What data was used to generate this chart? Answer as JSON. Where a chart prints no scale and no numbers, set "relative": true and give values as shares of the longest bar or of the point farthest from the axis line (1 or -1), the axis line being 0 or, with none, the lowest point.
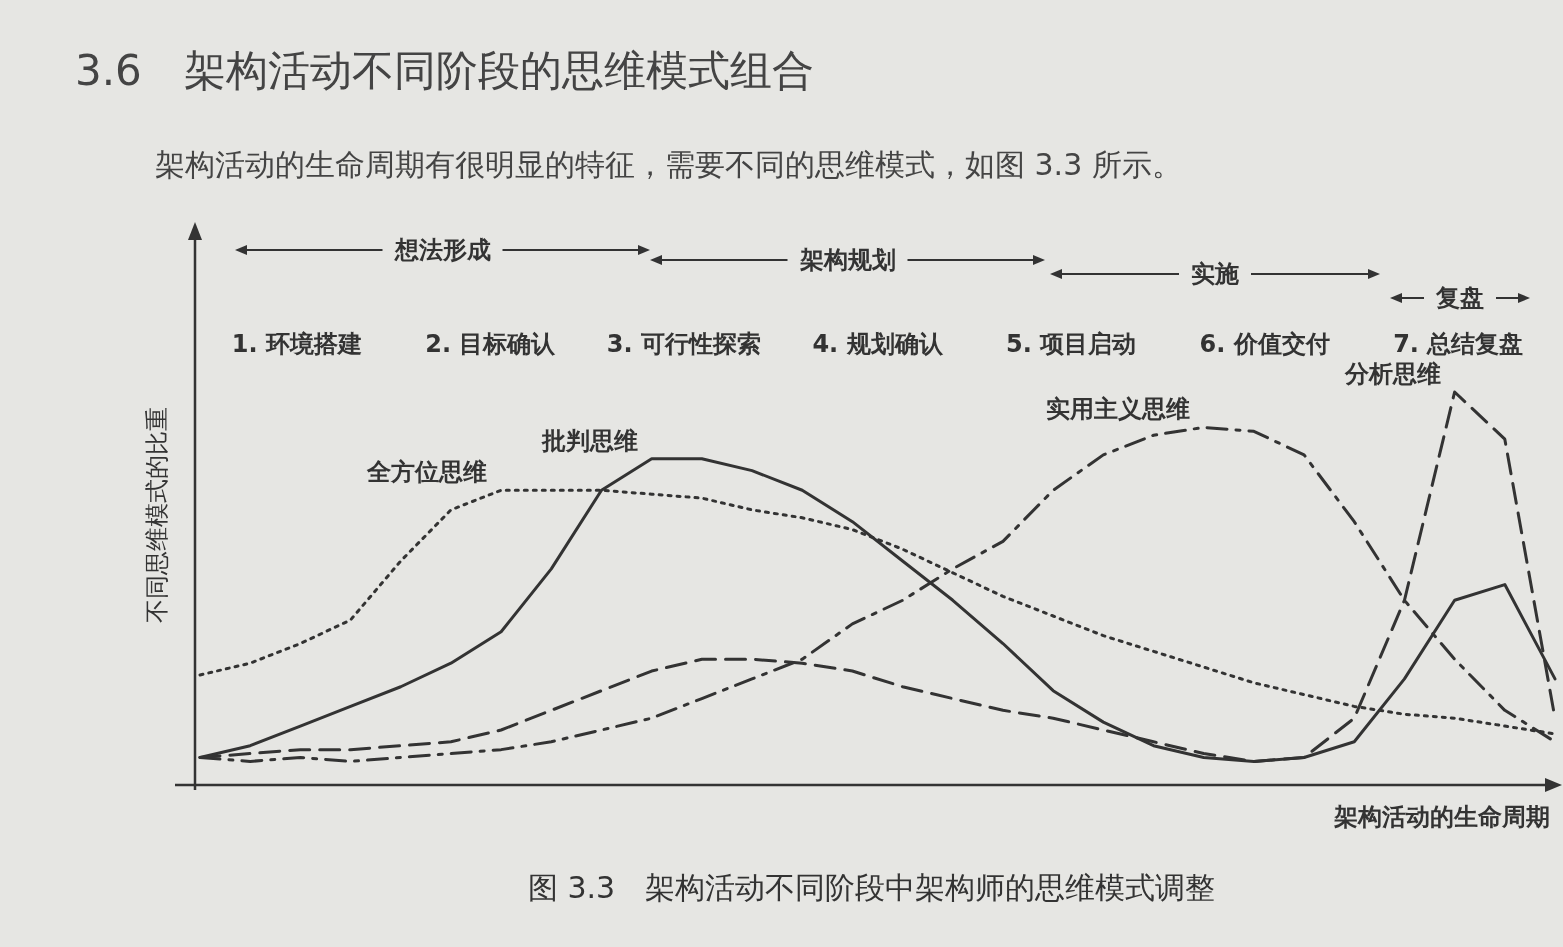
{
  "chart_data": {
    "type": "line",
    "relative": true,
    "title": "3.6　架构活动不同阶段的思维模式组合",
    "subtitle": "架构活动的生命周期有很明显的特征，需要不同的思维模式，如图 3.3 所示。",
    "xlabel": "架构活动的生命周期",
    "ylabel": "不同思维模式的比重",
    "categories": [
      null,
      null,
      null,
      null,
      null,
      null,
      null,
      null,
      null,
      null,
      null,
      null,
      null,
      null,
      null,
      null,
      null,
      null,
      null,
      null,
      null,
      null,
      null,
      null,
      null,
      null,
      null,
      null
    ],
    "series": [
      {
        "name": "全方位思维",
        "color": "#333333",
        "line_style": "dotted",
        "values": [
          0.28,
          0.31,
          0.36,
          0.42,
          0.57,
          0.7,
          0.75,
          0.75,
          0.75,
          0.74,
          0.73,
          0.7,
          0.68,
          0.65,
          0.6,
          0.54,
          0.48,
          0.43,
          0.38,
          0.34,
          0.3,
          0.26,
          0.23,
          0.2,
          0.18,
          0.17,
          0.15,
          0.13
        ]
      },
      {
        "name": "批判思维",
        "color": "#333333",
        "line_style": "solid",
        "values": [
          0.07,
          0.1,
          0.15,
          0.2,
          0.25,
          0.31,
          0.39,
          0.55,
          0.75,
          0.83,
          0.83,
          0.8,
          0.75,
          0.67,
          0.57,
          0.47,
          0.36,
          0.24,
          0.16,
          0.1,
          0.07,
          0.06,
          0.07,
          0.11,
          0.27,
          0.47,
          0.51,
          0.27
        ]
      },
      {
        "name": "实用主义思维",
        "color": "#333333",
        "line_style": "dashdot",
        "values": [
          0.07,
          0.06,
          0.07,
          0.06,
          0.07,
          0.08,
          0.09,
          0.11,
          0.14,
          0.17,
          0.22,
          0.27,
          0.32,
          0.41,
          0.47,
          0.55,
          0.62,
          0.75,
          0.84,
          0.89,
          0.91,
          0.9,
          0.84,
          0.67,
          0.47,
          0.32,
          0.19,
          0.11
        ]
      },
      {
        "name": "分析思维",
        "color": "#333333",
        "line_style": "dashed",
        "values": [
          0.07,
          0.08,
          0.09,
          0.09,
          0.1,
          0.11,
          0.14,
          0.19,
          0.24,
          0.29,
          0.32,
          0.32,
          0.31,
          0.29,
          0.25,
          0.22,
          0.19,
          0.17,
          0.14,
          0.11,
          0.08,
          0.06,
          0.07,
          0.17,
          0.47,
          1,
          0.88,
          0.17
        ]
      }
    ],
    "annotations": [
      "想法形成",
      "架构规划",
      "实施",
      "复盘",
      "1. 环境搭建",
      "2. 目标确认",
      "3. 可行性探索",
      "4. 规划确认",
      "5. 项目启动",
      "6. 价值交付",
      "7. 总结复盘",
      "图 3.3　架构活动不同阶段中架构师的思维模式调整"
    ]
  }
}
